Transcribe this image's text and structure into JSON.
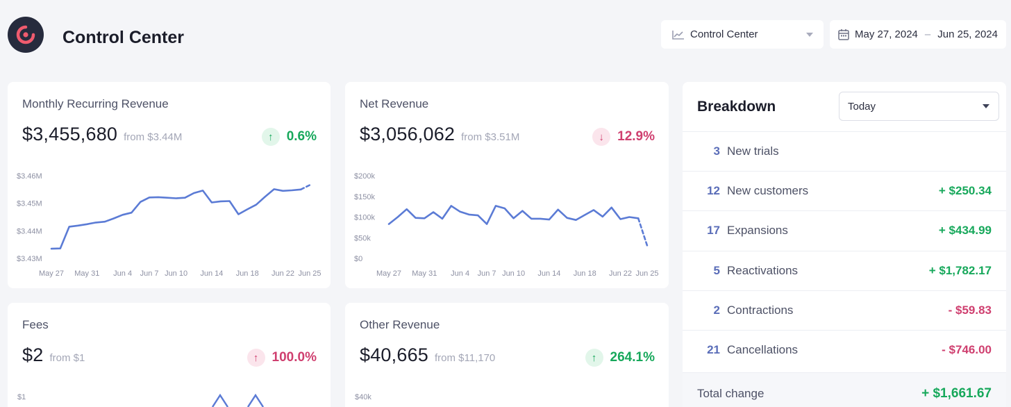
{
  "header": {
    "app_title": "Control Center",
    "dashboard_select": "Control Center",
    "date_start": "May 27, 2024",
    "date_sep": "–",
    "date_end": "Jun 25, 2024"
  },
  "cards": {
    "mrr": {
      "title": "Monthly Recurring Revenue",
      "value": "$3,455,680",
      "from": "from $3.44M",
      "change": "0.6%",
      "change_arrow": "↑"
    },
    "net": {
      "title": "Net Revenue",
      "value": "$3,056,062",
      "from": "from $3.51M",
      "change": "12.9%",
      "change_arrow": "↓"
    },
    "fees": {
      "title": "Fees",
      "value": "$2",
      "from": "from $1",
      "change": "100.0%",
      "change_arrow": "↑"
    },
    "other": {
      "title": "Other Revenue",
      "value": "$40,665",
      "from": "from $11,170",
      "change": "264.1%",
      "change_arrow": "↑"
    }
  },
  "chart_data": [
    {
      "type": "line",
      "name": "mrr",
      "x": [
        "May 27",
        "May 28",
        "May 29",
        "May 30",
        "May 31",
        "Jun 1",
        "Jun 2",
        "Jun 3",
        "Jun 4",
        "Jun 5",
        "Jun 6",
        "Jun 7",
        "Jun 8",
        "Jun 9",
        "Jun 10",
        "Jun 11",
        "Jun 12",
        "Jun 13",
        "Jun 14",
        "Jun 15",
        "Jun 16",
        "Jun 17",
        "Jun 18",
        "Jun 19",
        "Jun 20",
        "Jun 21",
        "Jun 22",
        "Jun 23",
        "Jun 24",
        "Jun 25"
      ],
      "values": [
        3433500,
        3433600,
        3441500,
        3441900,
        3442400,
        3443000,
        3443300,
        3444500,
        3445800,
        3446600,
        3450500,
        3452100,
        3452200,
        3452000,
        3451800,
        3452000,
        3453700,
        3454600,
        3450300,
        3450700,
        3450800,
        3446000,
        3447800,
        3449500,
        3452400,
        3455100,
        3454500,
        3454700,
        3455000,
        3456600
      ],
      "projected_from_index": 28,
      "ylim": [
        3430000,
        3460000
      ],
      "yticks": [
        "$3.43M",
        "$3.44M",
        "$3.45M",
        "$3.46M"
      ],
      "xticks": [
        "May 27",
        "May 31",
        "Jun 4",
        "Jun 7",
        "Jun 10",
        "Jun 14",
        "Jun 18",
        "Jun 22",
        "Jun 25"
      ],
      "color": "#5b7bd5"
    },
    {
      "type": "line",
      "name": "net",
      "x": [
        "May 27",
        "May 28",
        "May 29",
        "May 30",
        "May 31",
        "Jun 1",
        "Jun 2",
        "Jun 3",
        "Jun 4",
        "Jun 5",
        "Jun 6",
        "Jun 7",
        "Jun 8",
        "Jun 9",
        "Jun 10",
        "Jun 11",
        "Jun 12",
        "Jun 13",
        "Jun 14",
        "Jun 15",
        "Jun 16",
        "Jun 17",
        "Jun 18",
        "Jun 19",
        "Jun 20",
        "Jun 21",
        "Jun 22",
        "Jun 23",
        "Jun 24",
        "Jun 25"
      ],
      "values": [
        83000,
        100000,
        119000,
        98000,
        97000,
        112000,
        96000,
        127000,
        113000,
        106000,
        104000,
        83000,
        127000,
        121000,
        97000,
        115000,
        96000,
        96000,
        94000,
        118000,
        98000,
        93000,
        105000,
        117000,
        101000,
        123000,
        95000,
        100000,
        97000,
        31000
      ],
      "projected_from_index": 28,
      "ylim": [
        0,
        200000
      ],
      "yticks": [
        "$0",
        "$50k",
        "$100k",
        "$150k",
        "$200k"
      ],
      "xticks": [
        "May 27",
        "May 31",
        "Jun 4",
        "Jun 7",
        "Jun 10",
        "Jun 14",
        "Jun 18",
        "Jun 22",
        "Jun 25"
      ],
      "color": "#5b7bd5"
    },
    {
      "type": "line",
      "name": "fees",
      "yticks": [
        "$1"
      ],
      "color": "#5b7bd5"
    },
    {
      "type": "line",
      "name": "other",
      "yticks": [
        "$40k"
      ],
      "color": "#5b7bd5"
    }
  ],
  "breakdown": {
    "title": "Breakdown",
    "period": "Today",
    "rows": [
      {
        "count": "3",
        "label": "New trials",
        "amount": ""
      },
      {
        "count": "12",
        "label": "New customers",
        "amount": "+ $250.34"
      },
      {
        "count": "17",
        "label": "Expansions",
        "amount": "+ $434.99"
      },
      {
        "count": "5",
        "label": "Reactivations",
        "amount": "+ $1,782.17"
      },
      {
        "count": "2",
        "label": "Contractions",
        "amount": "- $59.83"
      },
      {
        "count": "21",
        "label": "Cancellations",
        "amount": "- $746.00"
      }
    ],
    "total_label": "Total change",
    "total_value": "+ $1,661.67"
  }
}
